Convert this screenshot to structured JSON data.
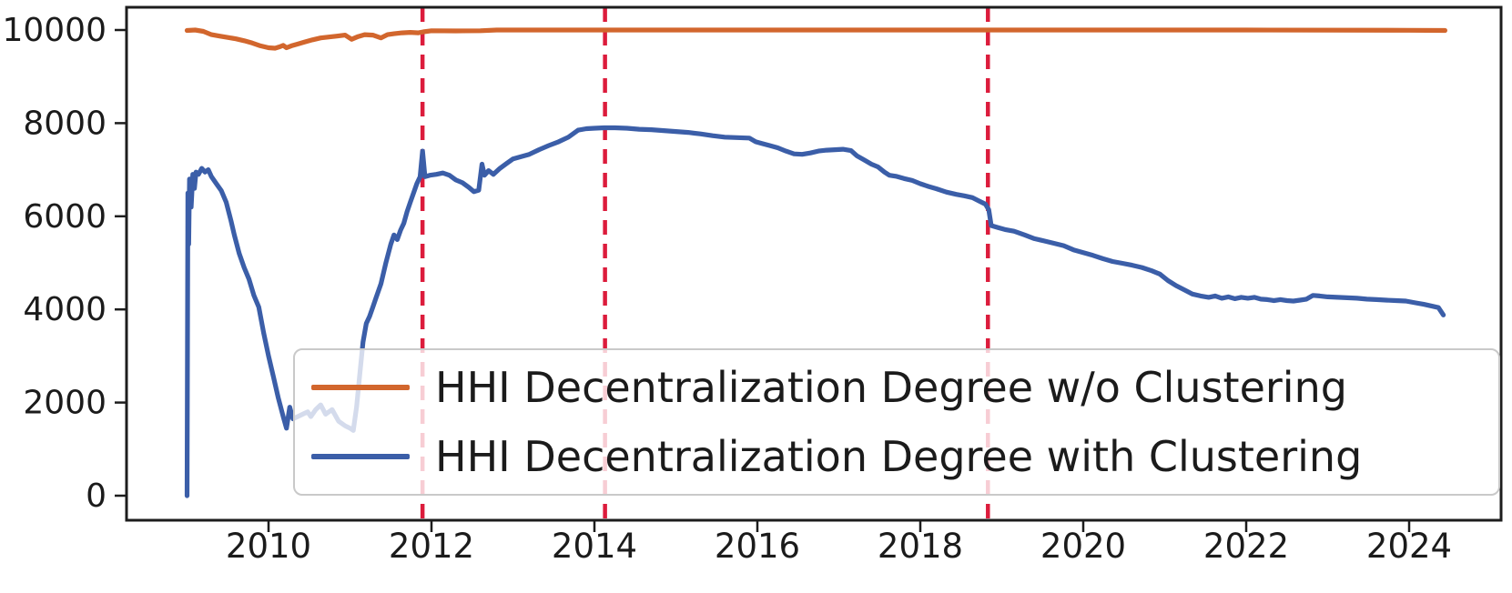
{
  "chart_data": {
    "type": "line",
    "title": "",
    "xlabel": "",
    "ylabel": "",
    "grid": false,
    "legend_position": "lower-center-inside",
    "axis_color": "#1d1d1d",
    "tick_label_color": "#1b1b1b",
    "background_color": "#ffffff",
    "xlim_years": [
      2008.27,
      2025.12
    ],
    "ylim": [
      0,
      10000
    ],
    "xtick_labels": [
      "2010",
      "2012",
      "2014",
      "2016",
      "2018",
      "2020",
      "2022",
      "2024"
    ],
    "xtick_values": [
      2010,
      2012,
      2014,
      2016,
      2018,
      2020,
      2022,
      2024
    ],
    "ytick_labels": [
      "0",
      "2000",
      "4000",
      "6000",
      "8000",
      "10000"
    ],
    "ytick_values": [
      0,
      2000,
      4000,
      6000,
      8000,
      10000
    ],
    "vlines": {
      "color": "#DC1C3C",
      "style": "dashed",
      "x_values": [
        2011.89,
        2014.13,
        2018.83
      ]
    },
    "series": [
      {
        "name": "HHI Decentralization Degree w/o Clustering",
        "color": "#D2662D",
        "points": [
          [
            2009.0,
            9990
          ],
          [
            2009.1,
            10000
          ],
          [
            2009.2,
            9970
          ],
          [
            2009.3,
            9900
          ],
          [
            2009.4,
            9870
          ],
          [
            2009.5,
            9840
          ],
          [
            2009.6,
            9810
          ],
          [
            2009.7,
            9770
          ],
          [
            2009.8,
            9720
          ],
          [
            2009.9,
            9660
          ],
          [
            2010.0,
            9620
          ],
          [
            2010.08,
            9610
          ],
          [
            2010.14,
            9640
          ],
          [
            2010.18,
            9670
          ],
          [
            2010.22,
            9620
          ],
          [
            2010.28,
            9660
          ],
          [
            2010.36,
            9700
          ],
          [
            2010.44,
            9740
          ],
          [
            2010.54,
            9790
          ],
          [
            2010.64,
            9830
          ],
          [
            2010.74,
            9850
          ],
          [
            2010.84,
            9870
          ],
          [
            2010.94,
            9890
          ],
          [
            2011.02,
            9800
          ],
          [
            2011.1,
            9860
          ],
          [
            2011.18,
            9900
          ],
          [
            2011.28,
            9890
          ],
          [
            2011.38,
            9830
          ],
          [
            2011.46,
            9900
          ],
          [
            2011.54,
            9920
          ],
          [
            2011.64,
            9940
          ],
          [
            2011.74,
            9950
          ],
          [
            2011.84,
            9940
          ],
          [
            2011.9,
            9960
          ],
          [
            2012.0,
            9985
          ],
          [
            2012.3,
            9980
          ],
          [
            2012.6,
            9985
          ],
          [
            2012.8,
            10000
          ],
          [
            2014.0,
            10000
          ],
          [
            2016.0,
            10000
          ],
          [
            2018.0,
            10000
          ],
          [
            2020.0,
            10000
          ],
          [
            2022.0,
            10000
          ],
          [
            2024.0,
            9995
          ],
          [
            2024.44,
            9990
          ]
        ]
      },
      {
        "name": "HHI Decentralization Degree with Clustering",
        "color": "#3B5EA8",
        "points": [
          [
            2009.0,
            0
          ],
          [
            2009.01,
            6500
          ],
          [
            2009.02,
            5400
          ],
          [
            2009.03,
            6800
          ],
          [
            2009.05,
            6200
          ],
          [
            2009.07,
            6900
          ],
          [
            2009.09,
            6600
          ],
          [
            2009.11,
            6950
          ],
          [
            2009.14,
            6900
          ],
          [
            2009.18,
            7030
          ],
          [
            2009.22,
            6950
          ],
          [
            2009.26,
            7000
          ],
          [
            2009.3,
            6850
          ],
          [
            2009.36,
            6700
          ],
          [
            2009.42,
            6550
          ],
          [
            2009.48,
            6300
          ],
          [
            2009.54,
            5900
          ],
          [
            2009.58,
            5600
          ],
          [
            2009.64,
            5200
          ],
          [
            2009.7,
            4900
          ],
          [
            2009.76,
            4650
          ],
          [
            2009.82,
            4300
          ],
          [
            2009.88,
            4050
          ],
          [
            2009.94,
            3500
          ],
          [
            2010.0,
            3000
          ],
          [
            2010.06,
            2550
          ],
          [
            2010.12,
            2100
          ],
          [
            2010.18,
            1700
          ],
          [
            2010.22,
            1450
          ],
          [
            2010.26,
            1900
          ],
          [
            2010.3,
            1650
          ],
          [
            2010.36,
            1700
          ],
          [
            2010.42,
            1750
          ],
          [
            2010.48,
            1800
          ],
          [
            2010.52,
            1700
          ],
          [
            2010.58,
            1850
          ],
          [
            2010.64,
            1950
          ],
          [
            2010.7,
            1750
          ],
          [
            2010.78,
            1850
          ],
          [
            2010.86,
            1600
          ],
          [
            2010.94,
            1500
          ],
          [
            2011.0,
            1450
          ],
          [
            2011.04,
            1400
          ],
          [
            2011.08,
            1900
          ],
          [
            2011.12,
            2600
          ],
          [
            2011.16,
            3300
          ],
          [
            2011.2,
            3700
          ],
          [
            2011.24,
            3850
          ],
          [
            2011.28,
            4050
          ],
          [
            2011.32,
            4250
          ],
          [
            2011.38,
            4550
          ],
          [
            2011.44,
            5000
          ],
          [
            2011.5,
            5400
          ],
          [
            2011.54,
            5600
          ],
          [
            2011.58,
            5500
          ],
          [
            2011.62,
            5700
          ],
          [
            2011.66,
            5850
          ],
          [
            2011.7,
            6100
          ],
          [
            2011.74,
            6300
          ],
          [
            2011.78,
            6500
          ],
          [
            2011.82,
            6700
          ],
          [
            2011.86,
            6850
          ],
          [
            2011.89,
            7400
          ],
          [
            2011.92,
            6850
          ],
          [
            2011.98,
            6880
          ],
          [
            2012.06,
            6900
          ],
          [
            2012.14,
            6930
          ],
          [
            2012.22,
            6880
          ],
          [
            2012.3,
            6780
          ],
          [
            2012.38,
            6720
          ],
          [
            2012.46,
            6620
          ],
          [
            2012.52,
            6530
          ],
          [
            2012.58,
            6560
          ],
          [
            2012.62,
            7120
          ],
          [
            2012.65,
            6880
          ],
          [
            2012.7,
            6980
          ],
          [
            2012.76,
            6900
          ],
          [
            2012.84,
            7030
          ],
          [
            2012.92,
            7130
          ],
          [
            2013.0,
            7230
          ],
          [
            2013.1,
            7280
          ],
          [
            2013.2,
            7330
          ],
          [
            2013.32,
            7430
          ],
          [
            2013.44,
            7520
          ],
          [
            2013.56,
            7600
          ],
          [
            2013.68,
            7700
          ],
          [
            2013.8,
            7850
          ],
          [
            2013.9,
            7880
          ],
          [
            2014.0,
            7890
          ],
          [
            2014.12,
            7900
          ],
          [
            2014.25,
            7900
          ],
          [
            2014.4,
            7890
          ],
          [
            2014.55,
            7870
          ],
          [
            2014.7,
            7860
          ],
          [
            2014.85,
            7840
          ],
          [
            2015.0,
            7820
          ],
          [
            2015.15,
            7800
          ],
          [
            2015.3,
            7770
          ],
          [
            2015.45,
            7730
          ],
          [
            2015.6,
            7700
          ],
          [
            2015.75,
            7690
          ],
          [
            2015.9,
            7680
          ],
          [
            2015.98,
            7600
          ],
          [
            2016.06,
            7560
          ],
          [
            2016.15,
            7520
          ],
          [
            2016.25,
            7470
          ],
          [
            2016.35,
            7400
          ],
          [
            2016.45,
            7340
          ],
          [
            2016.55,
            7330
          ],
          [
            2016.65,
            7360
          ],
          [
            2016.75,
            7400
          ],
          [
            2016.85,
            7420
          ],
          [
            2016.95,
            7430
          ],
          [
            2017.05,
            7440
          ],
          [
            2017.15,
            7410
          ],
          [
            2017.22,
            7300
          ],
          [
            2017.3,
            7220
          ],
          [
            2017.4,
            7120
          ],
          [
            2017.48,
            7060
          ],
          [
            2017.56,
            6950
          ],
          [
            2017.62,
            6880
          ],
          [
            2017.7,
            6860
          ],
          [
            2017.8,
            6810
          ],
          [
            2017.9,
            6770
          ],
          [
            2018.0,
            6700
          ],
          [
            2018.1,
            6640
          ],
          [
            2018.2,
            6590
          ],
          [
            2018.32,
            6520
          ],
          [
            2018.44,
            6470
          ],
          [
            2018.54,
            6440
          ],
          [
            2018.64,
            6400
          ],
          [
            2018.72,
            6330
          ],
          [
            2018.8,
            6260
          ],
          [
            2018.84,
            6140
          ],
          [
            2018.87,
            5800
          ],
          [
            2018.95,
            5760
          ],
          [
            2019.05,
            5710
          ],
          [
            2019.15,
            5680
          ],
          [
            2019.28,
            5600
          ],
          [
            2019.4,
            5520
          ],
          [
            2019.52,
            5470
          ],
          [
            2019.64,
            5420
          ],
          [
            2019.76,
            5370
          ],
          [
            2019.88,
            5280
          ],
          [
            2020.0,
            5220
          ],
          [
            2020.12,
            5160
          ],
          [
            2020.24,
            5090
          ],
          [
            2020.36,
            5030
          ],
          [
            2020.48,
            4990
          ],
          [
            2020.6,
            4950
          ],
          [
            2020.72,
            4900
          ],
          [
            2020.84,
            4830
          ],
          [
            2020.94,
            4760
          ],
          [
            2021.04,
            4620
          ],
          [
            2021.14,
            4510
          ],
          [
            2021.24,
            4420
          ],
          [
            2021.34,
            4330
          ],
          [
            2021.44,
            4290
          ],
          [
            2021.54,
            4260
          ],
          [
            2021.62,
            4290
          ],
          [
            2021.7,
            4240
          ],
          [
            2021.78,
            4270
          ],
          [
            2021.86,
            4230
          ],
          [
            2021.94,
            4260
          ],
          [
            2022.02,
            4240
          ],
          [
            2022.1,
            4260
          ],
          [
            2022.18,
            4220
          ],
          [
            2022.26,
            4210
          ],
          [
            2022.34,
            4190
          ],
          [
            2022.42,
            4210
          ],
          [
            2022.5,
            4190
          ],
          [
            2022.58,
            4180
          ],
          [
            2022.66,
            4200
          ],
          [
            2022.74,
            4220
          ],
          [
            2022.82,
            4300
          ],
          [
            2022.9,
            4290
          ],
          [
            2023.0,
            4270
          ],
          [
            2023.12,
            4260
          ],
          [
            2023.24,
            4250
          ],
          [
            2023.36,
            4240
          ],
          [
            2023.48,
            4220
          ],
          [
            2023.6,
            4210
          ],
          [
            2023.72,
            4200
          ],
          [
            2023.84,
            4190
          ],
          [
            2023.96,
            4180
          ],
          [
            2024.08,
            4140
          ],
          [
            2024.18,
            4110
          ],
          [
            2024.28,
            4070
          ],
          [
            2024.36,
            4040
          ],
          [
            2024.42,
            3880
          ]
        ]
      }
    ]
  }
}
